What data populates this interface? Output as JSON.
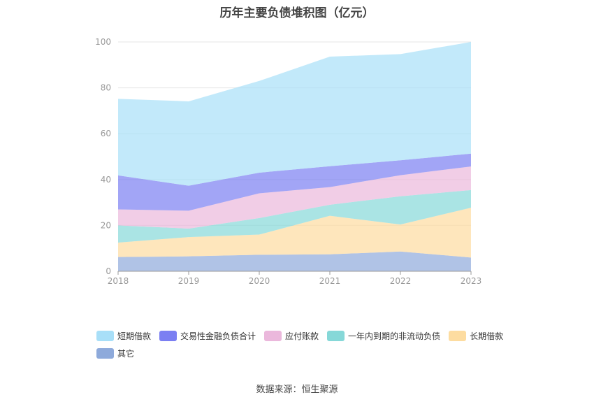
{
  "chart_data": {
    "type": "area",
    "stacked": true,
    "title": "历年主要负债堆积图（亿元）",
    "x": [
      "2018",
      "2019",
      "2020",
      "2021",
      "2022",
      "2023"
    ],
    "ylim": [
      0,
      100
    ],
    "yticks": [
      "0",
      "20",
      "40",
      "60",
      "80",
      "100"
    ],
    "grid": true,
    "legend_position": "bottom",
    "series": [
      {
        "name": "其它",
        "color": "#8eaadb",
        "values": [
          6.2,
          6.5,
          7.2,
          7.4,
          8.6,
          6.0
        ]
      },
      {
        "name": "长期借款",
        "color": "#fddca0",
        "values": [
          6.3,
          8.4,
          8.8,
          16.8,
          11.8,
          21.7
        ]
      },
      {
        "name": "一年内到期的非流动负债",
        "color": "#86d8d8",
        "values": [
          7.5,
          3.7,
          7.2,
          4.8,
          12.3,
          7.7
        ]
      },
      {
        "name": "应付账款",
        "color": "#ebb8dc",
        "values": [
          7.0,
          7.8,
          10.8,
          7.7,
          9.2,
          10.3
        ]
      },
      {
        "name": "交易性金融负债合计",
        "color": "#7b7ff2",
        "values": [
          14.8,
          10.9,
          9.0,
          9.1,
          6.5,
          5.6
        ]
      },
      {
        "name": "短期借款",
        "color": "#a8dff8",
        "values": [
          33.4,
          36.8,
          40.0,
          47.8,
          46.3,
          48.7
        ]
      }
    ],
    "legend_order": [
      "短期借款",
      "交易性金融负债合计",
      "应付账款",
      "一年内到期的非流动负债",
      "长期借款",
      "其它"
    ]
  },
  "source": "数据来源：恒生聚源"
}
